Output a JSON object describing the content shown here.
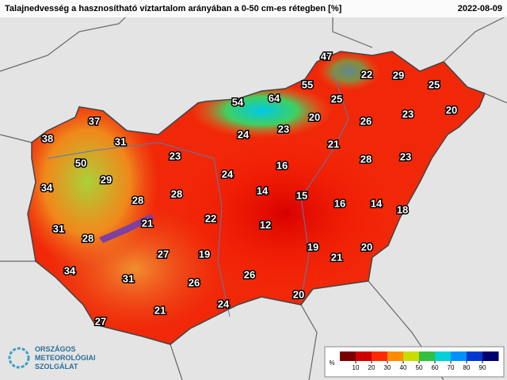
{
  "header": {
    "title": "Talajnedvesség a hasznosítható víztartalom arányában a 0-50 cm-es rétegben [%]",
    "date": "2022-08-09"
  },
  "stations": [
    47,
    22,
    29,
    25,
    55,
    64,
    54,
    25,
    20,
    37,
    20,
    26,
    23,
    38,
    31,
    24,
    23,
    21,
    50,
    23,
    28,
    23,
    29,
    24,
    16,
    34,
    28,
    28,
    14,
    15,
    16,
    14,
    18,
    31,
    21,
    22,
    12,
    28,
    27,
    19,
    19,
    21,
    20,
    34,
    31,
    26,
    26,
    20,
    24,
    21,
    27
  ],
  "legend": {
    "unit": "%",
    "lim": [
      0,
      100
    ],
    "ticks": [
      10,
      20,
      30,
      40,
      50,
      60,
      70,
      80,
      90
    ],
    "colors": [
      "#7a0000",
      "#d00000",
      "#ff2a00",
      "#ff8c00",
      "#c8dc00",
      "#30c040",
      "#00d0d8",
      "#0090ff",
      "#0038d0",
      "#000070"
    ]
  },
  "logo": {
    "line1": "ORSZÁGOS",
    "line2": "METEOROLÓGIAI",
    "line3": "SZOLGÁLAT"
  }
}
